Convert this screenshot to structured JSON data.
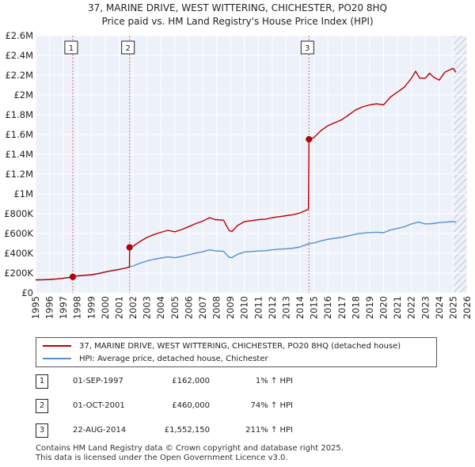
{
  "title": "37, MARINE DRIVE, WEST WITTERING, CHICHESTER, PO20 8HQ",
  "subtitle": "Price paid vs. HM Land Registry's House Price Index (HPI)",
  "chart_data": {
    "type": "line",
    "title": "37, MARINE DRIVE, WEST WITTERING, CHICHESTER, PO20 8HQ",
    "subtitle": "Price paid vs. HM Land Registry's House Price Index (HPI)",
    "xlim": [
      1995,
      2026
    ],
    "ylim": [
      0,
      2600000
    ],
    "x_ticks": [
      1995,
      1996,
      1997,
      1998,
      1999,
      2000,
      2001,
      2002,
      2003,
      2004,
      2005,
      2006,
      2007,
      2008,
      2009,
      2010,
      2011,
      2012,
      2013,
      2014,
      2015,
      2016,
      2017,
      2018,
      2019,
      2020,
      2021,
      2022,
      2023,
      2024,
      2025,
      2026
    ],
    "y_ticks": [
      {
        "value": 0,
        "label": "£0"
      },
      {
        "value": 200000,
        "label": "£200K"
      },
      {
        "value": 400000,
        "label": "£400K"
      },
      {
        "value": 600000,
        "label": "£600K"
      },
      {
        "value": 800000,
        "label": "£800K"
      },
      {
        "value": 1000000,
        "label": "£1M"
      },
      {
        "value": 1200000,
        "label": "£1.2M"
      },
      {
        "value": 1400000,
        "label": "£1.4M"
      },
      {
        "value": 1600000,
        "label": "£1.6M"
      },
      {
        "value": 1800000,
        "label": "£1.8M"
      },
      {
        "value": 2000000,
        "label": "£2M"
      },
      {
        "value": 2200000,
        "label": "£2.2M"
      },
      {
        "value": 2400000,
        "label": "£2.4M"
      },
      {
        "value": 2600000,
        "label": "£2.6M"
      }
    ],
    "series": [
      {
        "name": "37, MARINE DRIVE, WEST WITTERING, CHICHESTER, PO20 8HQ (detached house)",
        "color": "#c00000",
        "x": [
          1995.0,
          1995.5,
          1996.0,
          1996.5,
          1997.0,
          1997.67,
          1998.0,
          1998.5,
          1999.0,
          1999.5,
          2000.0,
          2000.5,
          2001.0,
          2001.5,
          2001.74,
          2001.75,
          2002.0,
          2002.5,
          2003.0,
          2003.5,
          2004.0,
          2004.5,
          2005.0,
          2005.5,
          2006.0,
          2006.5,
          2007.0,
          2007.5,
          2007.9,
          2008.5,
          2008.9,
          2009.1,
          2009.5,
          2010.0,
          2010.5,
          2011.0,
          2011.5,
          2012.0,
          2012.5,
          2013.0,
          2013.5,
          2014.0,
          2014.6,
          2014.64,
          2015.0,
          2015.5,
          2016.0,
          2016.5,
          2017.0,
          2017.5,
          2018.0,
          2018.5,
          2019.0,
          2019.5,
          2020.0,
          2020.5,
          2021.0,
          2021.5,
          2022.0,
          2022.3,
          2022.6,
          2023.0,
          2023.3,
          2023.6,
          2024.0,
          2024.4,
          2024.7,
          2025.0,
          2025.2
        ],
        "y": [
          132000,
          133000,
          136000,
          141000,
          149000,
          162000,
          172000,
          178000,
          183000,
          195000,
          212000,
          226000,
          238000,
          252000,
          260000,
          460000,
          472000,
          520000,
          560000,
          590000,
          612000,
          632000,
          618000,
          640000,
          670000,
          700000,
          725000,
          760000,
          740000,
          735000,
          630000,
          620000,
          680000,
          720000,
          730000,
          740000,
          745000,
          760000,
          770000,
          780000,
          790000,
          808000,
          845000,
          1552150,
          1570000,
          1640000,
          1690000,
          1720000,
          1750000,
          1800000,
          1850000,
          1880000,
          1900000,
          1910000,
          1900000,
          1980000,
          2030000,
          2080000,
          2170000,
          2240000,
          2170000,
          2170000,
          2220000,
          2180000,
          2150000,
          2230000,
          2250000,
          2270000,
          2230000
        ]
      },
      {
        "name": "HPI: Average price, detached house, Chichester",
        "color": "#5b8dd0",
        "x": [
          1995.0,
          1995.5,
          1996.0,
          1996.5,
          1997.0,
          1997.67,
          1998.0,
          1998.5,
          1999.0,
          1999.5,
          2000.0,
          2000.5,
          2001.0,
          2001.5,
          2001.75,
          2002.0,
          2002.5,
          2003.0,
          2003.5,
          2004.0,
          2004.5,
          2005.0,
          2005.5,
          2006.0,
          2006.5,
          2007.0,
          2007.5,
          2007.9,
          2008.5,
          2008.9,
          2009.1,
          2009.5,
          2010.0,
          2010.5,
          2011.0,
          2011.5,
          2012.0,
          2012.5,
          2013.0,
          2013.5,
          2014.0,
          2014.64,
          2015.0,
          2015.5,
          2016.0,
          2016.5,
          2017.0,
          2017.5,
          2018.0,
          2018.5,
          2019.0,
          2019.5,
          2020.0,
          2020.5,
          2021.0,
          2021.5,
          2022.0,
          2022.5,
          2023.0,
          2023.5,
          2024.0,
          2024.5,
          2025.0,
          2025.2
        ],
        "y": [
          130000,
          131000,
          134000,
          139000,
          147000,
          160000,
          170000,
          176000,
          181000,
          193000,
          210000,
          224000,
          236000,
          252000,
          264000,
          272000,
          300000,
          322000,
          340000,
          352000,
          363000,
          355000,
          368000,
          385000,
          402000,
          415000,
          435000,
          425000,
          420000,
          360000,
          355000,
          390000,
          413000,
          418000,
          423000,
          426000,
          435000,
          442000,
          446000,
          452000,
          464000,
          498000,
          505000,
          526000,
          542000,
          552000,
          562000,
          578000,
          594000,
          603000,
          610000,
          613000,
          608000,
          636000,
          651000,
          668000,
          697000,
          715000,
          697000,
          700000,
          710000,
          715000,
          720000,
          715000
        ]
      }
    ],
    "sales": [
      {
        "num": "1",
        "date": "01-SEP-1997",
        "x": 1997.67,
        "price": "£162,000",
        "value": 162000,
        "hpi": "1% ↑ HPI"
      },
      {
        "num": "2",
        "date": "01-OCT-2001",
        "x": 2001.75,
        "price": "£460,000",
        "value": 460000,
        "hpi": "74% ↑ HPI"
      },
      {
        "num": "3",
        "date": "22-AUG-2014",
        "x": 2014.64,
        "price": "£1,552,150",
        "value": 1552150,
        "hpi": "211% ↑ HPI"
      }
    ],
    "forecast_from": 2025.0
  },
  "legend": {
    "property_label": "37, MARINE DRIVE, WEST WITTERING, CHICHESTER, PO20 8HQ (detached house)",
    "hpi_label": "HPI: Average price, detached house, Chichester",
    "property_color": "#c00000",
    "hpi_color": "#5b8dd0"
  },
  "footer": {
    "line1": "Contains HM Land Registry data © Crown copyright and database right 2025.",
    "line2": "This data is licensed under the Open Government Licence v3.0."
  },
  "colors": {
    "plot_background": "#edf1f9",
    "grid": "#ffffff",
    "marker_line": "#dc7070",
    "forecast_hatch": "#b5b9c2"
  }
}
